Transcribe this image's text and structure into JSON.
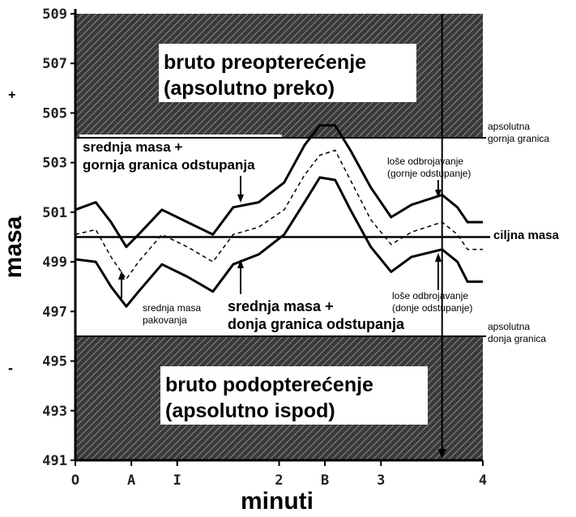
{
  "chart_data": {
    "type": "line",
    "xlabel": "minuti",
    "ylabel": "masa",
    "xlim": [
      0,
      4
    ],
    "ylim": [
      491,
      509
    ],
    "y_ticks": [
      509,
      507,
      505,
      503,
      501,
      499,
      497,
      495,
      493,
      491
    ],
    "x_ticks": [
      {
        "value": 0,
        "label": "O"
      },
      {
        "value": 0.55,
        "label": "A"
      },
      {
        "value": 1,
        "label": "I"
      },
      {
        "value": 2,
        "label": "2"
      },
      {
        "value": 2.45,
        "label": "B"
      },
      {
        "value": 3,
        "label": "3"
      },
      {
        "value": 4,
        "label": "4"
      }
    ],
    "y_sign_plus": "+",
    "y_sign_minus": "-",
    "target_mass": 500,
    "upper_absolute_limit": 504,
    "lower_absolute_limit": 496,
    "zones": {
      "over": {
        "line1": "bruto preopterećenje",
        "line2": "(apsolutno preko)"
      },
      "under": {
        "line1": "bruto podopterećenje",
        "line2": "(apsolutno ispod)"
      }
    },
    "line_labels": {
      "upper_limit_line1": "apsolutna",
      "upper_limit_line2": "gornja granica",
      "target": "ciljna masa",
      "lower_limit_line1": "apsolutna",
      "lower_limit_line2": "donja granica"
    },
    "annotations": {
      "upper_band_line1": "srednja masa +",
      "upper_band_line2": "gornja granica odstupanja",
      "lower_band_line1": "srednja masa +",
      "lower_band_line2": "donja granica odstupanja",
      "mean_line1": "srednja masa",
      "mean_line2": "pakovanja",
      "bad_upper_line1": "loše odbrojavanje",
      "bad_upper_line2": "(gornje odstupanje)",
      "bad_lower_line1": "loše odbrojavanje",
      "bad_lower_line2": "(donje odstupanje)"
    },
    "series": [
      {
        "style": "solid",
        "x": [
          0,
          0.2,
          0.35,
          0.5,
          0.62,
          0.85,
          1.1,
          1.35,
          1.55,
          1.8,
          2.05,
          2.25,
          2.4,
          2.55,
          2.7,
          2.9,
          3.1,
          3.3,
          3.6,
          3.75,
          3.85,
          4
        ],
        "y": [
          501.1,
          501.4,
          500.6,
          499.6,
          500.1,
          501.1,
          500.6,
          500.1,
          501.2,
          501.4,
          502.2,
          503.7,
          504.5,
          504.5,
          503.5,
          502.0,
          500.8,
          501.3,
          501.7,
          501.2,
          500.6,
          500.6
        ]
      },
      {
        "style": "dashed",
        "x": [
          0,
          0.2,
          0.35,
          0.5,
          0.62,
          0.85,
          1.1,
          1.35,
          1.55,
          1.8,
          2.05,
          2.25,
          2.4,
          2.55,
          2.7,
          2.9,
          3.1,
          3.3,
          3.6,
          3.75,
          3.85,
          4
        ],
        "y": [
          500.1,
          500.3,
          499.2,
          498.3,
          499.0,
          500.1,
          499.6,
          499.0,
          500.1,
          500.4,
          501.1,
          502.5,
          503.3,
          503.5,
          502.3,
          500.7,
          499.7,
          500.2,
          500.6,
          500.1,
          499.5,
          499.5
        ]
      },
      {
        "style": "solid",
        "x": [
          0,
          0.2,
          0.35,
          0.5,
          0.62,
          0.85,
          1.1,
          1.35,
          1.55,
          1.8,
          2.05,
          2.25,
          2.4,
          2.55,
          2.7,
          2.9,
          3.1,
          3.3,
          3.6,
          3.75,
          3.85,
          4
        ],
        "y": [
          499.1,
          499.0,
          498.0,
          497.2,
          497.8,
          498.9,
          498.4,
          497.8,
          498.9,
          499.3,
          500.1,
          501.4,
          502.4,
          502.3,
          501.1,
          499.6,
          498.6,
          499.2,
          499.5,
          499.0,
          498.2,
          498.2
        ]
      }
    ],
    "bad_count_x": 3.6
  }
}
